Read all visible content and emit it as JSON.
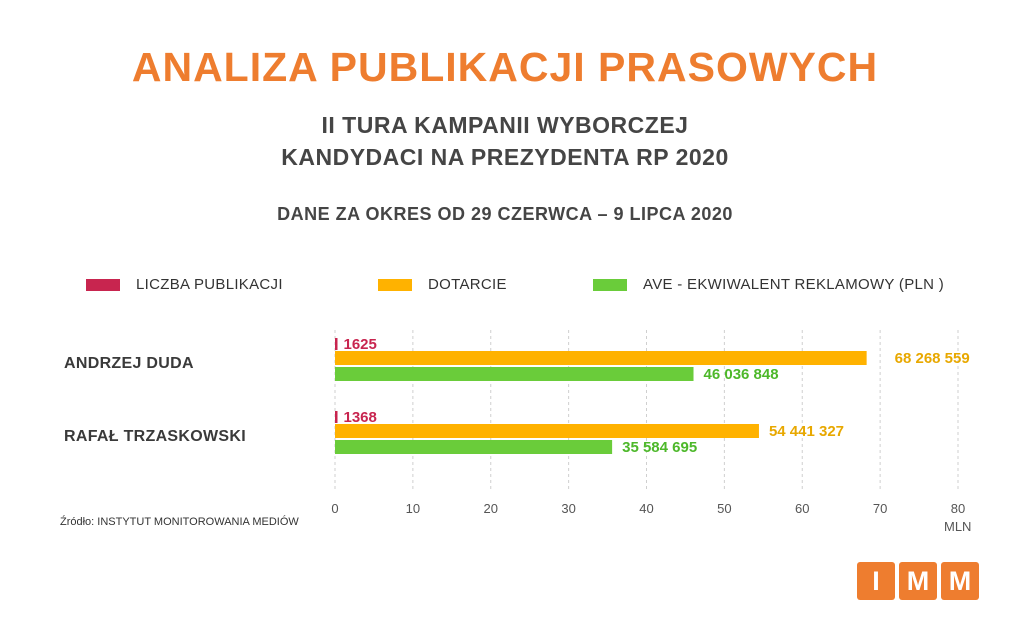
{
  "header": {
    "title": "ANALIZA PUBLIKACJI PRASOWYCH",
    "subtitle_line1": "II TURA KAMPANII WYBORCZEJ",
    "subtitle_line2": "KANDYDACI NA PREZYDENTA RP 2020",
    "period": "DANE ZA OKRES OD 29 CZERWCA – 9 LIPCA 2020"
  },
  "legend": [
    {
      "label": "LICZBA PUBLIKACJI",
      "color": "#c8254f"
    },
    {
      "label": "DOTARCIE",
      "color": "#ffb200"
    },
    {
      "label": "AVE - EKWIWALENT REKLAMOWY (PLN )",
      "color": "#6acc3a"
    }
  ],
  "source": "Źródło: INSTYTUT MONITOROWANIA MEDIÓW",
  "logo": {
    "letters": [
      "I",
      "M",
      "M"
    ],
    "color": "#ee7d2f"
  },
  "chart_data": {
    "type": "bar",
    "orientation": "horizontal",
    "categories": [
      "ANDRZEJ DUDA",
      "RAFAŁ TRZASKOWSKI"
    ],
    "series": [
      {
        "name": "LICZBA PUBLIKACJI",
        "values": [
          1625,
          1368
        ],
        "labels": [
          "1625",
          "1368"
        ],
        "color": "#c8254f"
      },
      {
        "name": "DOTARCIE",
        "values": [
          68268559,
          54441327
        ],
        "labels": [
          "68 268 559",
          "54 441 327"
        ],
        "color": "#ffb200"
      },
      {
        "name": "AVE - EKWIWALENT REKLAMOWY (PLN )",
        "values": [
          46036848,
          35584695
        ],
        "labels": [
          "46 036 848",
          "35 584 695"
        ],
        "color": "#6acc3a"
      }
    ],
    "xlim": [
      0,
      80000000
    ],
    "xticks": [
      0,
      10,
      20,
      30,
      40,
      50,
      60,
      70,
      80
    ],
    "xunit_label": "MLN",
    "grid": "vertical-dashed",
    "legend_position": "top"
  }
}
